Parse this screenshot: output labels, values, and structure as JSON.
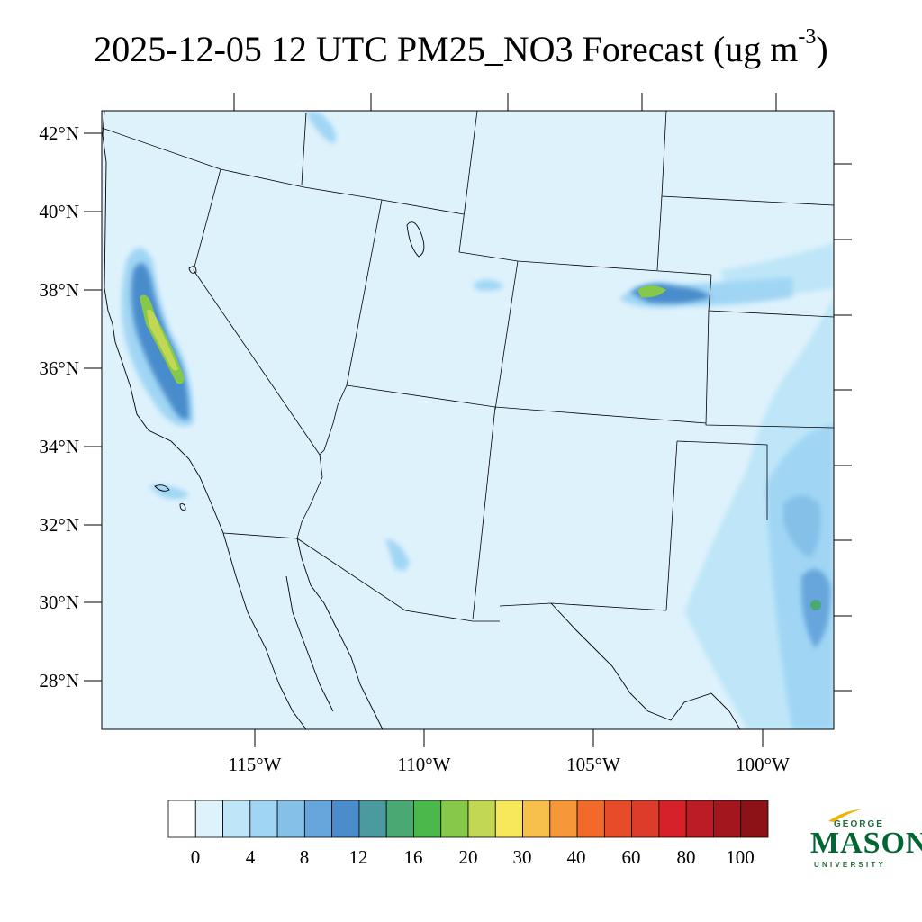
{
  "title": {
    "text": "2025-12-05 12 UTC PM25_NO3 Forecast (ug m",
    "sup": "-3",
    "close": ")"
  },
  "map": {
    "lat_labels": [
      "42°N",
      "40°N",
      "38°N",
      "36°N",
      "34°N",
      "32°N",
      "30°N",
      "28°N"
    ],
    "lon_labels": [
      "115°W",
      "110°W",
      "105°W",
      "100°W"
    ],
    "background_color": "#def2fc"
  },
  "colorbar": {
    "colors": [
      "#ffffff",
      "#def2fc",
      "#bee6f8",
      "#a0d6f4",
      "#84c0e8",
      "#66a6dc",
      "#4a8ccc",
      "#4a9aa0",
      "#4aa872",
      "#4ab84a",
      "#86c84a",
      "#c2d854",
      "#f6e85a",
      "#f6c04a",
      "#f6983a",
      "#f26a2a",
      "#e64c2a",
      "#de3c2a",
      "#d6202a",
      "#bc1c24",
      "#a4161e",
      "#8c1218"
    ],
    "labels": [
      "0",
      "4",
      "8",
      "12",
      "16",
      "20",
      "30",
      "40",
      "60",
      "80",
      "100"
    ]
  },
  "logo": {
    "line1": "GEORGE",
    "line2": "MASON",
    "line3": "UNIVERSITY",
    "green": "#006633",
    "gold": "#f0b400"
  }
}
